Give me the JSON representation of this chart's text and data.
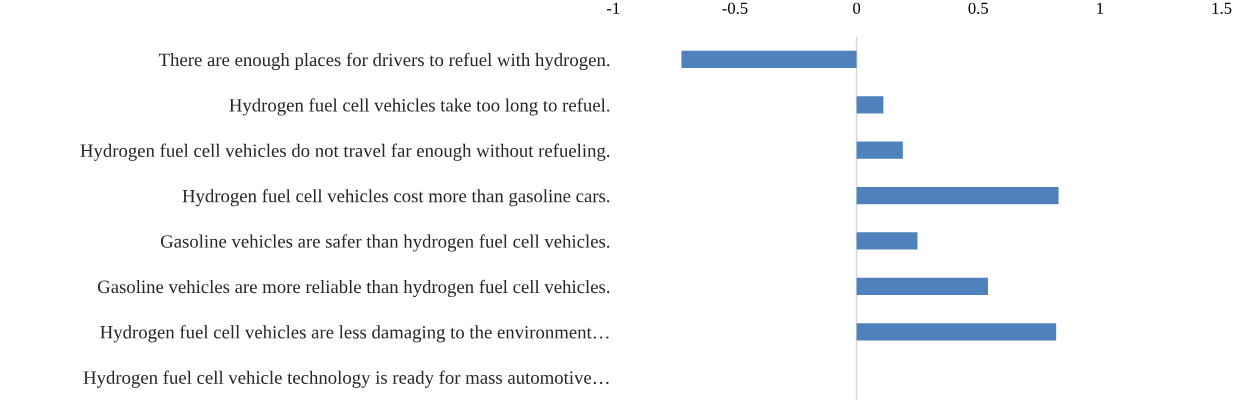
{
  "chart_data": {
    "type": "bar",
    "orientation": "horizontal",
    "categories": [
      "There are enough places for drivers to refuel with hydrogen.",
      "Hydrogen fuel cell vehicles take too long to refuel.",
      "Hydrogen fuel cell vehicles do not travel far enough without refueling.",
      "Hydrogen fuel cell vehicles cost more than gasoline cars.",
      "Gasoline vehicles are safer than hydrogen fuel cell vehicles.",
      "Gasoline vehicles are more reliable than hydrogen fuel cell vehicles.",
      "Hydrogen fuel cell vehicles are less damaging to the environment…",
      "Hydrogen fuel cell vehicle technology is ready for mass automotive…"
    ],
    "values": [
      -0.72,
      0.11,
      0.19,
      0.83,
      0.25,
      0.54,
      0.82,
      0
    ],
    "color": "#4f81bd",
    "xlim": [
      -1,
      1.5
    ],
    "xticks": [
      -1,
      -0.5,
      0,
      0.5,
      1,
      1.5
    ],
    "ref_lines": [
      {
        "axis": "x",
        "value": 0,
        "color": "#d9d9d9"
      }
    ],
    "grid": false,
    "legend": false
  }
}
